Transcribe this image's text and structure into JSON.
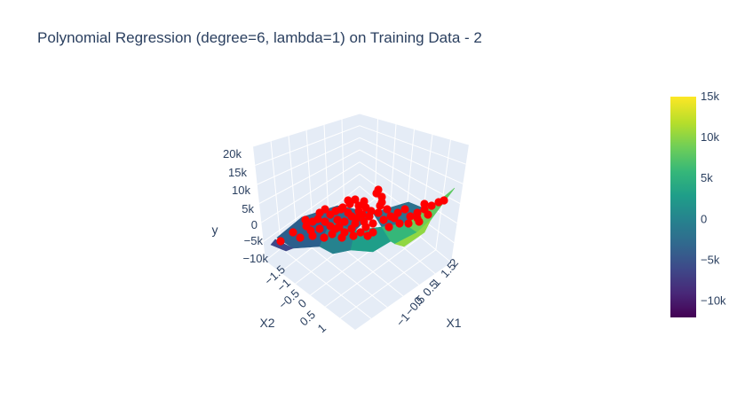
{
  "chart_data": {
    "type": "surface3d",
    "title": "Polynomial Regression (degree=6, lambda=1) on Training Data - 2",
    "x_axis": {
      "label": "X1",
      "ticks": [
        "−1",
        "−0.5",
        "0",
        "0.5",
        "1",
        "1.5",
        "2"
      ]
    },
    "y_axis": {
      "label": "X2",
      "ticks": [
        "−1.5",
        "−1",
        "−0.5",
        "0",
        "0.5",
        "1"
      ]
    },
    "z_axis": {
      "label": "y",
      "ticks": [
        "−10k",
        "−5k",
        "0",
        "5k",
        "10k",
        "15k",
        "20k"
      ],
      "range": [
        -10000,
        20000
      ]
    },
    "colorbar": {
      "colorscale": "viridis",
      "range": [
        -12000,
        15000
      ],
      "ticks": [
        "15k",
        "10k",
        "5k",
        "0",
        "−5k",
        "−10k"
      ],
      "tick_values": [
        15000,
        10000,
        5000,
        0,
        -5000,
        -10000
      ]
    },
    "grid": true,
    "background_color": "#e5ecf6",
    "marker_color": "#ff0000",
    "series": [
      {
        "type": "surface",
        "colorscale": "viridis"
      },
      {
        "type": "scatter3d",
        "color": "#ff0000"
      }
    ]
  }
}
